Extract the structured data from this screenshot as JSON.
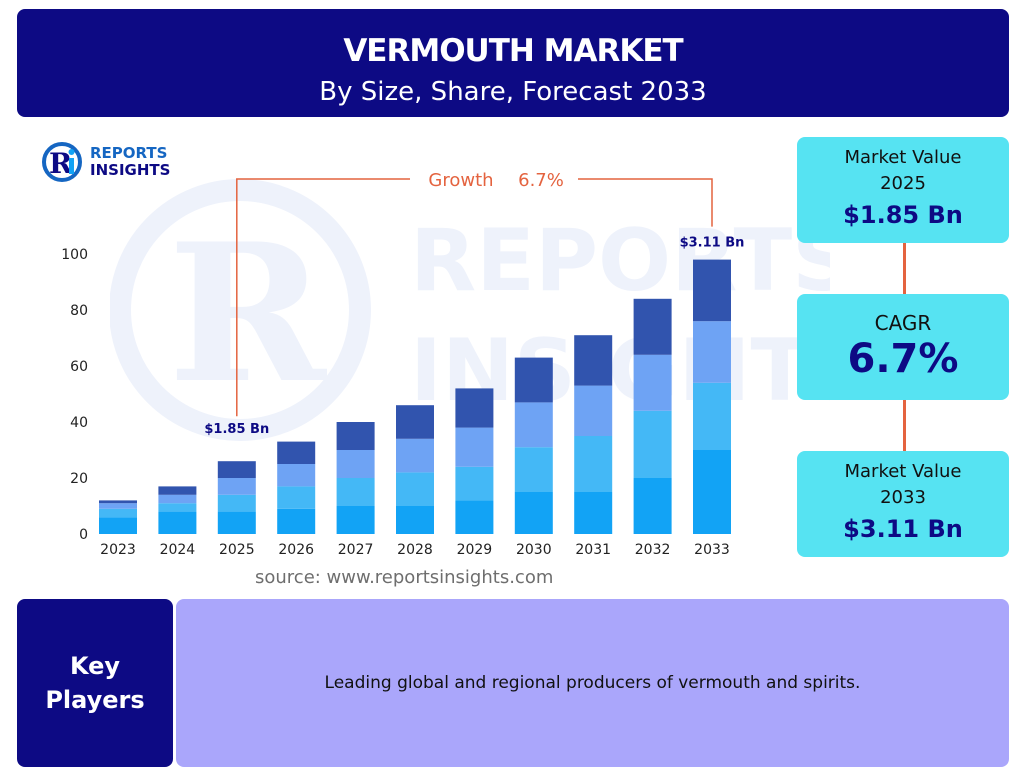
{
  "header": {
    "title": "VERMOUTH MARKET",
    "subtitle": "By Size, Share, Forecast 2033"
  },
  "logo": {
    "line1": "REPORTS",
    "line2": "INSIGHTS",
    "watermark_line1": "REPORTS",
    "watermark_line2": "INSIGHTS"
  },
  "colors": {
    "navy": "#0d0a84",
    "cyan_box": "#56e3f2",
    "lavender_box": "#aaa6fb",
    "accent_orange": "#e4633f",
    "segments": [
      "#12a3f5",
      "#44b8f6",
      "#6ea3f4",
      "#3154ae"
    ]
  },
  "chart_data": {
    "type": "bar",
    "stacked": true,
    "categories": [
      "2023",
      "2024",
      "2025",
      "2026",
      "2027",
      "2028",
      "2029",
      "2030",
      "2031",
      "2032",
      "2033"
    ],
    "series": [
      {
        "values": [
          6,
          8,
          8,
          9,
          10,
          10,
          12,
          15,
          15,
          20,
          30
        ]
      },
      {
        "values": [
          3,
          3,
          6,
          8,
          10,
          12,
          12,
          16,
          20,
          24,
          24
        ]
      },
      {
        "values": [
          2,
          3,
          6,
          8,
          10,
          12,
          14,
          16,
          18,
          20,
          22
        ]
      },
      {
        "values": [
          1,
          3,
          6,
          8,
          10,
          12,
          14,
          16,
          18,
          20,
          22
        ]
      }
    ],
    "ylim": [
      0,
      100
    ],
    "yticks": [
      0,
      20,
      40,
      60,
      80,
      100
    ],
    "annotations": {
      "start_label": "$1.85 Bn",
      "start_category": "2025",
      "end_label": "$3.11 Bn",
      "end_category": "2033",
      "growth_label": "Growth",
      "growth_value": "6.7%"
    },
    "grid": false,
    "legend": "none"
  },
  "source": "source: www.reportsinsights.com",
  "stats": {
    "market_value_start": {
      "label_line1": "Market Value",
      "label_line2": "2025",
      "value": "$1.85 Bn"
    },
    "cagr": {
      "label": "CAGR",
      "value": "6.7%"
    },
    "market_value_end": {
      "label_line1": "Market Value",
      "label_line2": "2033",
      "value": "$3.11 Bn"
    }
  },
  "key_players": {
    "label_line1": "Key",
    "label_line2": "Players",
    "text": "Leading global and regional producers of vermouth and spirits."
  }
}
